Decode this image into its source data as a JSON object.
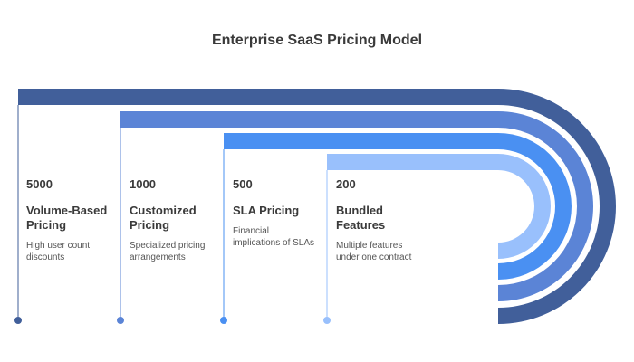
{
  "title": "Enterprise SaaS Pricing Model",
  "items": [
    {
      "value": "5000",
      "label": "Volume-Based\nPricing",
      "desc": "High user count\ndiscounts",
      "color": "#415f9a"
    },
    {
      "value": "1000",
      "label": "Customized\nPricing",
      "desc": "Specialized pricing\narrangements",
      "color": "#5b84d6"
    },
    {
      "value": "500",
      "label": "SLA Pricing",
      "desc": "Financial\nimplications of SLAs",
      "color": "#4a90f2"
    },
    {
      "value": "200",
      "label": "Bundled\nFeatures",
      "desc": "Multiple features\nunder one contract",
      "color": "#99c0fc"
    }
  ]
}
